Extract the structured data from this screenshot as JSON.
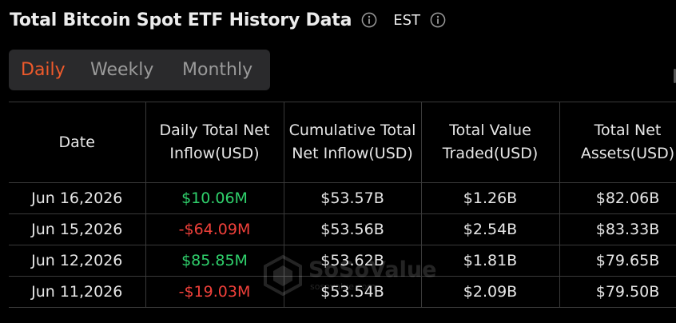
{
  "header": {
    "title": "Total Bitcoin Spot ETF History Data",
    "timezone": "EST"
  },
  "tabs": [
    {
      "label": "Daily",
      "active": true
    },
    {
      "label": "Weekly",
      "active": false
    },
    {
      "label": "Monthly",
      "active": false
    }
  ],
  "table": {
    "headers": [
      "Date",
      "Daily Total Net Inflow(USD)",
      "Cumulative Total Net Inflow(USD)",
      "Total Value Traded(USD)",
      "Total Net Assets(USD)"
    ],
    "rows": [
      {
        "date": "Jun 16,2026",
        "daily_inflow": "$10.06M",
        "cumulative": "$53.57B",
        "traded": "$1.26B",
        "assets": "$82.06B"
      },
      {
        "date": "Jun 15,2026",
        "daily_inflow": "-$64.09M",
        "cumulative": "$53.56B",
        "traded": "$2.54B",
        "assets": "$83.33B"
      },
      {
        "date": "Jun 12,2026",
        "daily_inflow": "$85.85M",
        "cumulative": "$53.62B",
        "traded": "$1.81B",
        "assets": "$79.65B"
      },
      {
        "date": "Jun 11,2026",
        "daily_inflow": "-$19.03M",
        "cumulative": "$53.54B",
        "traded": "$2.09B",
        "assets": "$79.50B"
      }
    ]
  },
  "watermark": {
    "brand": "SoSoValue",
    "url": "sosovalue.com"
  },
  "colors": {
    "accent": "#ee5a2b",
    "positive": "#2fcf6b",
    "negative": "#f0403a",
    "background": "#000000"
  },
  "icons": {
    "title_info": "info-icon",
    "timezone_info": "info-icon",
    "watermark_logo": "cube-logo-icon"
  }
}
